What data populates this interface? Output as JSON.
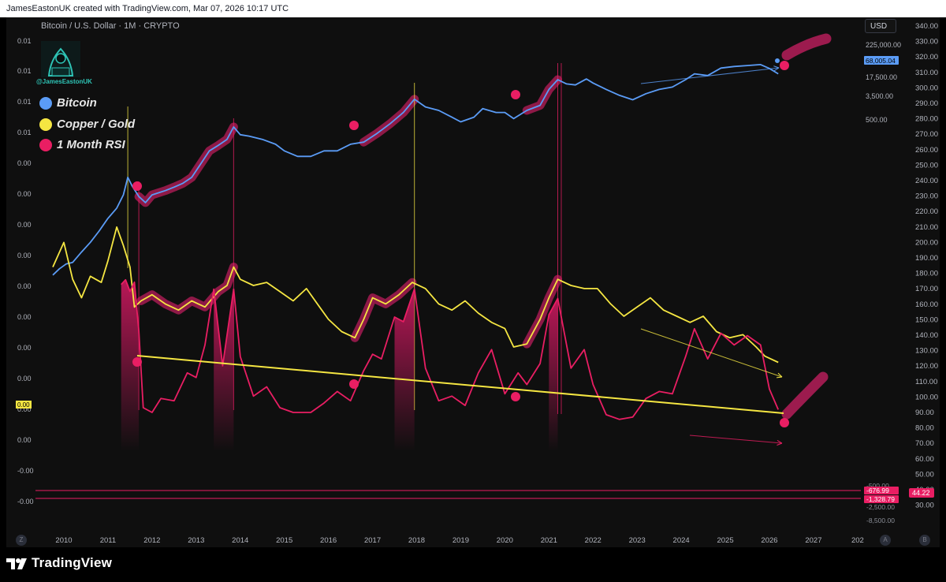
{
  "header": {
    "text": "JamesEastonUK created with TradingView.com, Mar 07, 2026 10:17 UTC"
  },
  "symbol": {
    "text": "Bitcoin / U.S. Dollar · 1M · CRYPTO"
  },
  "currency_button": "USD",
  "author_handle": "@JamesEastonUK",
  "legend": [
    {
      "label": "Bitcoin",
      "color": "#5b9cf6"
    },
    {
      "label": "Copper / Gold",
      "color": "#f5e642"
    },
    {
      "label": "1 Month RSI",
      "color": "#e91e63"
    }
  ],
  "left_axis_labels": [
    "0.01",
    "0.01",
    "0.01",
    "0.01",
    "0.00",
    "0.00",
    "0.00",
    "0.00",
    "0.00",
    "0.00",
    "0.00",
    "0.00",
    "0.00",
    "0.00",
    "-0.00",
    "-0.00"
  ],
  "left_axis_highlight": "0.00",
  "right_axis_labels": [
    "340.00",
    "330.00",
    "320.00",
    "310.00",
    "300.00",
    "290.00",
    "280.00",
    "270.00",
    "260.00",
    "250.00",
    "240.00",
    "230.00",
    "220.00",
    "210.00",
    "200.00",
    "190.00",
    "180.00",
    "170.00",
    "160.00",
    "150.00",
    "140.00",
    "130.00",
    "120.00",
    "110.00",
    "100.00",
    "90.00",
    "80.00",
    "70.00",
    "60.00",
    "50.00",
    "40.00",
    "30.00"
  ],
  "btc_scale_labels": [
    "225,000.00",
    "17,500.00",
    "3,500.00",
    "500.00"
  ],
  "btc_price_badge": "68,005.04",
  "rsi_scale_labels": [
    "-500.00",
    "-676.99",
    "-1,328.79",
    "-2,500.00",
    "-8,500.00"
  ],
  "rsi_badge": "44.22",
  "x_axis_labels": [
    "2010",
    "2011",
    "2012",
    "2013",
    "2014",
    "2015",
    "2016",
    "2017",
    "2018",
    "2019",
    "2020",
    "2021",
    "2022",
    "2023",
    "2024",
    "2025",
    "2026",
    "2027",
    "202"
  ],
  "corner_buttons": {
    "left": "Z",
    "a": "A",
    "b": "B"
  },
  "brand": "TradingView",
  "colors": {
    "bitcoin": "#5b9cf6",
    "copper_gold": "#f5e642",
    "rsi": "#e91e63",
    "highlight": "#9c1b4e",
    "background": "#0f0f0f"
  },
  "chart_data": {
    "type": "line",
    "title": "Bitcoin / U.S. Dollar · 1M · CRYPTO",
    "x_range": [
      2009.6,
      2028.2
    ],
    "series": [
      {
        "name": "Bitcoin",
        "axis": "log",
        "points": [
          [
            2009.75,
            1.8
          ],
          [
            2009.9,
            2.5
          ],
          [
            2010.05,
            3.2
          ],
          [
            2010.2,
            3.5
          ],
          [
            2010.4,
            6
          ],
          [
            2010.6,
            10
          ],
          [
            2010.8,
            18
          ],
          [
            2011.0,
            35
          ],
          [
            2011.2,
            60
          ],
          [
            2011.35,
            120
          ],
          [
            2011.45,
            300
          ],
          [
            2011.55,
            190
          ],
          [
            2011.7,
            110
          ],
          [
            2011.85,
            80
          ],
          [
            2012.0,
            120
          ],
          [
            2012.3,
            150
          ],
          [
            2012.5,
            180
          ],
          [
            2012.7,
            220
          ],
          [
            2012.9,
            300
          ],
          [
            2013.1,
            600
          ],
          [
            2013.3,
            1200
          ],
          [
            2013.5,
            1600
          ],
          [
            2013.7,
            2200
          ],
          [
            2013.85,
            4200
          ],
          [
            2014.0,
            2800
          ],
          [
            2014.2,
            2600
          ],
          [
            2014.5,
            2200
          ],
          [
            2014.8,
            1700
          ],
          [
            2015.0,
            1200
          ],
          [
            2015.3,
            900
          ],
          [
            2015.6,
            900
          ],
          [
            2015.9,
            1200
          ],
          [
            2016.2,
            1200
          ],
          [
            2016.5,
            1700
          ],
          [
            2016.8,
            1900
          ],
          [
            2017.1,
            3000
          ],
          [
            2017.4,
            5000
          ],
          [
            2017.7,
            9000
          ],
          [
            2017.95,
            18000
          ],
          [
            2018.2,
            12000
          ],
          [
            2018.5,
            10000
          ],
          [
            2018.8,
            7000
          ],
          [
            2019.0,
            5500
          ],
          [
            2019.3,
            7000
          ],
          [
            2019.5,
            11000
          ],
          [
            2019.8,
            9000
          ],
          [
            2020.0,
            9000
          ],
          [
            2020.2,
            6500
          ],
          [
            2020.5,
            10000
          ],
          [
            2020.8,
            13000
          ],
          [
            2021.0,
            30000
          ],
          [
            2021.2,
            50000
          ],
          [
            2021.4,
            40000
          ],
          [
            2021.6,
            38000
          ],
          [
            2021.85,
            52000
          ],
          [
            2022.0,
            42000
          ],
          [
            2022.3,
            30000
          ],
          [
            2022.6,
            22000
          ],
          [
            2022.9,
            17500
          ],
          [
            2023.2,
            24000
          ],
          [
            2023.5,
            30000
          ],
          [
            2023.8,
            34000
          ],
          [
            2024.1,
            50000
          ],
          [
            2024.3,
            68000
          ],
          [
            2024.6,
            62000
          ],
          [
            2024.9,
            92000
          ],
          [
            2025.2,
            100000
          ],
          [
            2025.5,
            105000
          ],
          [
            2025.8,
            110000
          ],
          [
            2026.0,
            90000
          ],
          [
            2026.2,
            68005
          ]
        ]
      },
      {
        "name": "Copper / Gold",
        "axis": "left",
        "points": [
          [
            2009.75,
            4.6
          ],
          [
            2010.0,
            5.4
          ],
          [
            2010.2,
            4.2
          ],
          [
            2010.4,
            3.6
          ],
          [
            2010.6,
            4.3
          ],
          [
            2010.85,
            4.1
          ],
          [
            2011.0,
            4.8
          ],
          [
            2011.2,
            5.9
          ],
          [
            2011.35,
            5.3
          ],
          [
            2011.5,
            4.6
          ],
          [
            2011.6,
            3.3
          ],
          [
            2011.75,
            3.5
          ],
          [
            2012.0,
            3.7
          ],
          [
            2012.3,
            3.4
          ],
          [
            2012.6,
            3.2
          ],
          [
            2012.9,
            3.5
          ],
          [
            2013.2,
            3.3
          ],
          [
            2013.5,
            3.8
          ],
          [
            2013.7,
            4.0
          ],
          [
            2013.85,
            4.6
          ],
          [
            2014.0,
            4.2
          ],
          [
            2014.3,
            4.0
          ],
          [
            2014.6,
            4.1
          ],
          [
            2014.9,
            3.8
          ],
          [
            2015.2,
            3.5
          ],
          [
            2015.5,
            3.9
          ],
          [
            2015.8,
            3.3
          ],
          [
            2016.0,
            2.9
          ],
          [
            2016.3,
            2.5
          ],
          [
            2016.6,
            2.3
          ],
          [
            2016.8,
            2.9
          ],
          [
            2017.0,
            3.6
          ],
          [
            2017.3,
            3.4
          ],
          [
            2017.6,
            3.7
          ],
          [
            2017.9,
            4.1
          ],
          [
            2018.2,
            3.9
          ],
          [
            2018.5,
            3.4
          ],
          [
            2018.8,
            3.2
          ],
          [
            2019.1,
            3.5
          ],
          [
            2019.4,
            3.1
          ],
          [
            2019.7,
            2.8
          ],
          [
            2020.0,
            2.6
          ],
          [
            2020.2,
            2.0
          ],
          [
            2020.5,
            2.1
          ],
          [
            2020.8,
            2.9
          ],
          [
            2021.0,
            3.6
          ],
          [
            2021.2,
            4.2
          ],
          [
            2021.5,
            4.0
          ],
          [
            2021.8,
            3.9
          ],
          [
            2022.1,
            3.9
          ],
          [
            2022.4,
            3.4
          ],
          [
            2022.7,
            3.0
          ],
          [
            2023.0,
            3.3
          ],
          [
            2023.3,
            3.6
          ],
          [
            2023.6,
            3.2
          ],
          [
            2023.9,
            3.0
          ],
          [
            2024.2,
            2.8
          ],
          [
            2024.5,
            3.0
          ],
          [
            2024.8,
            2.5
          ],
          [
            2025.1,
            2.3
          ],
          [
            2025.4,
            2.4
          ],
          [
            2025.7,
            2.0
          ],
          [
            2025.9,
            1.7
          ],
          [
            2026.2,
            1.5
          ]
        ]
      },
      {
        "name": "1 Month RSI",
        "axis": "right",
        "points": [
          [
            2011.3,
            98
          ],
          [
            2011.4,
            100
          ],
          [
            2011.5,
            95
          ],
          [
            2011.6,
            99
          ],
          [
            2011.7,
            78
          ],
          [
            2011.8,
            45
          ],
          [
            2012.0,
            43
          ],
          [
            2012.2,
            49
          ],
          [
            2012.5,
            48
          ],
          [
            2012.8,
            60
          ],
          [
            2013.0,
            58
          ],
          [
            2013.2,
            72
          ],
          [
            2013.4,
            96
          ],
          [
            2013.6,
            63
          ],
          [
            2013.85,
            96
          ],
          [
            2014.0,
            67
          ],
          [
            2014.3,
            50
          ],
          [
            2014.6,
            54
          ],
          [
            2014.9,
            45
          ],
          [
            2015.2,
            43
          ],
          [
            2015.6,
            43
          ],
          [
            2015.9,
            47
          ],
          [
            2016.2,
            52
          ],
          [
            2016.5,
            48
          ],
          [
            2016.8,
            61
          ],
          [
            2017.0,
            68
          ],
          [
            2017.2,
            66
          ],
          [
            2017.5,
            84
          ],
          [
            2017.7,
            82
          ],
          [
            2017.95,
            96
          ],
          [
            2018.2,
            62
          ],
          [
            2018.5,
            48
          ],
          [
            2018.8,
            50
          ],
          [
            2019.1,
            46
          ],
          [
            2019.4,
            60
          ],
          [
            2019.7,
            70
          ],
          [
            2020.0,
            51
          ],
          [
            2020.3,
            60
          ],
          [
            2020.5,
            55
          ],
          [
            2020.8,
            64
          ],
          [
            2021.0,
            85
          ],
          [
            2021.2,
            92
          ],
          [
            2021.5,
            62
          ],
          [
            2021.8,
            70
          ],
          [
            2022.0,
            55
          ],
          [
            2022.3,
            42
          ],
          [
            2022.6,
            40
          ],
          [
            2022.9,
            41
          ],
          [
            2023.2,
            49
          ],
          [
            2023.5,
            52
          ],
          [
            2023.8,
            51
          ],
          [
            2024.1,
            67
          ],
          [
            2024.3,
            79
          ],
          [
            2024.6,
            66
          ],
          [
            2024.9,
            77
          ],
          [
            2025.2,
            72
          ],
          [
            2025.5,
            76
          ],
          [
            2025.8,
            72
          ],
          [
            2026.0,
            53
          ],
          [
            2026.2,
            44.22
          ]
        ]
      }
    ],
    "annotations": [
      "Bitcoin projection",
      "Copper / Gold projection",
      "Copper / Gold trendline"
    ]
  }
}
